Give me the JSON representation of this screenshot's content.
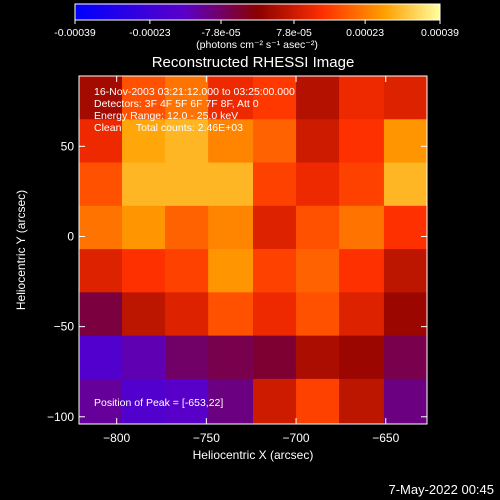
{
  "chart_data": {
    "type": "heatmap",
    "title": "Reconstructed RHESSI Image",
    "xlabel": "Heliocentric X (arcsec)",
    "ylabel": "Heliocentric Y (arcsec)",
    "xlim": [
      -821,
      -627
    ],
    "ylim": [
      -104,
      89
    ],
    "x_ticks": [
      -800,
      -750,
      -700,
      -650
    ],
    "y_ticks": [
      -100,
      -50,
      0,
      50
    ],
    "colorbar": {
      "ticks": [
        -0.00039,
        -0.00023,
        -7.8e-05,
        7.8e-05,
        0.00023,
        0.00039
      ],
      "tick_labels": [
        "-0.00039",
        "-0.00023",
        "-7.8e-05",
        "7.8e-05",
        "0.00023",
        "0.00039"
      ],
      "units": "(photons cm⁻² s⁻¹ asec⁻²)",
      "range": [
        -0.00039,
        0.00039
      ],
      "colormap": [
        "#0000ff",
        "#5a00c8",
        "#8a0000",
        "#ff3000",
        "#ffa000",
        "#ffffa0"
      ]
    },
    "peak": [
      -653,
      22
    ],
    "value_grid": {
      "rows": 8,
      "cols": 8,
      "x_edges": [
        -821,
        -797,
        -773,
        -749,
        -724,
        -700,
        -676,
        -651,
        -627
      ],
      "y_edges": [
        89,
        65,
        41,
        17,
        -7,
        -31,
        -55,
        -79,
        -104
      ],
      "values": [
        [
          3e-05,
          0.00018,
          0.00022,
          0.00012,
          0.00015,
          5e-05,
          0.00012,
          0.0001
        ],
        [
          0.00012,
          0.00028,
          0.0003,
          0.00024,
          0.0002,
          8e-05,
          0.00014,
          0.00026
        ],
        [
          0.00018,
          0.0003,
          0.0003,
          0.0003,
          0.00016,
          0.00012,
          0.00016,
          0.0003
        ],
        [
          0.00022,
          0.00026,
          0.0002,
          0.00024,
          0.0001,
          0.00018,
          0.00022,
          0.00014
        ],
        [
          0.0001,
          0.00014,
          0.00016,
          0.00026,
          0.00016,
          0.0002,
          0.00014,
          6e-05
        ],
        [
          -5e-05,
          6e-05,
          0.0001,
          0.00018,
          0.00012,
          0.00018,
          0.0001,
          2e-05
        ],
        [
          -0.00018,
          -0.00014,
          -8e-05,
          -6e-05,
          -4e-05,
          4e-05,
          2e-05,
          -6e-05
        ],
        [
          -0.00012,
          -0.00018,
          -0.00016,
          -0.0001,
          8e-05,
          0.00016,
          6e-05,
          -0.0001
        ]
      ]
    }
  },
  "annotations": {
    "time_range": "16-Nov-2003 03:21:12.000 to 03:25:00.000",
    "detectors": "Detectors: 3F 4F 5F 6F 7F 8F, Att 0",
    "energy_range": "Energy Range: 12.0 - 25.0 keV",
    "method_counts": "Clean     Total counts: 2.46E+03",
    "peak_position": "Position of Peak = [-653,22]"
  },
  "footer": {
    "date_time": "7-May-2022 00:45"
  }
}
